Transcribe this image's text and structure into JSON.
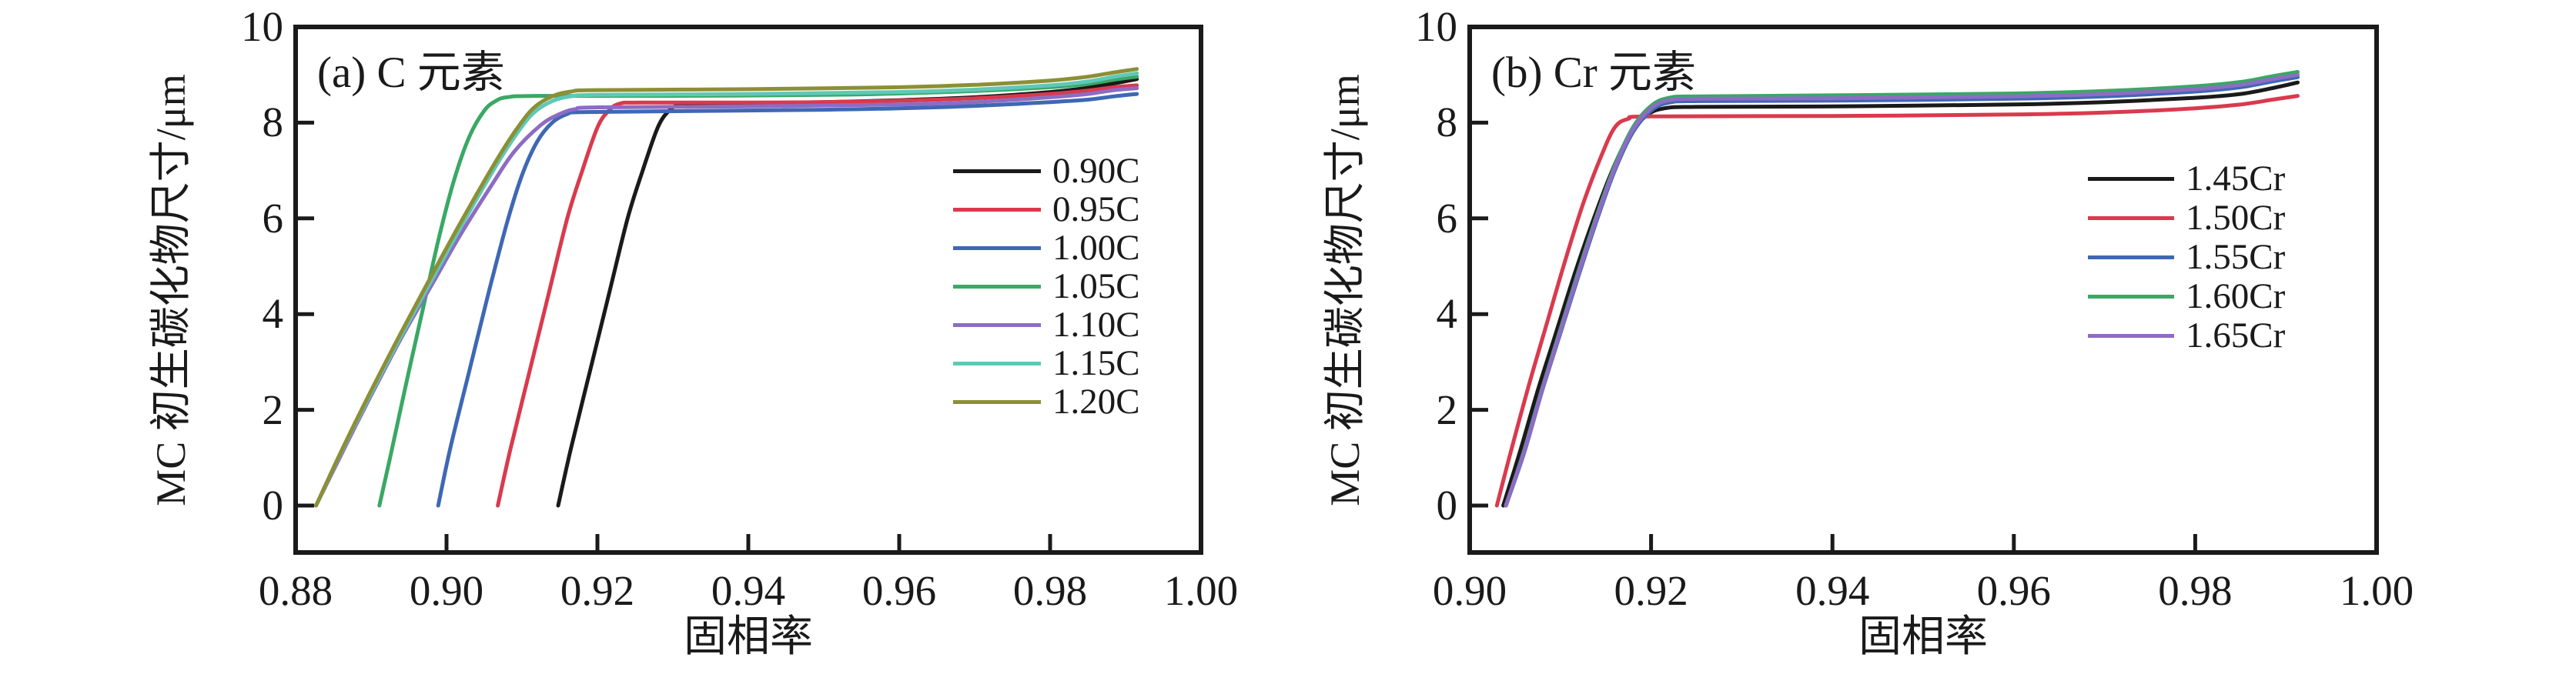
{
  "figure": {
    "background": "#ffffff",
    "frame_color": "#1a1a1a",
    "text_color": "#1a1a1a"
  },
  "chart_data": [
    {
      "id": "a",
      "type": "line",
      "panel_label": "(a) C 元素",
      "xlabel": "固相率",
      "ylabel": "MC 初生碳化物尺寸/μm",
      "xlim": [
        0.88,
        1.0
      ],
      "ylim": [
        0,
        10
      ],
      "xticks": [
        0.88,
        0.9,
        0.92,
        0.94,
        0.96,
        0.98,
        1.0
      ],
      "xtick_labels": [
        "0.88",
        "0.90",
        "0.92",
        "0.94",
        "0.96",
        "0.98",
        "1.00"
      ],
      "yticks": [
        0,
        2,
        4,
        6,
        8,
        10
      ],
      "ytick_labels": [
        "0",
        "2",
        "4",
        "6",
        "8",
        "10"
      ],
      "grid": false,
      "legend_position": "right-center",
      "series": [
        {
          "name": "0.90C",
          "color": "#1a1a1a",
          "points": [
            [
              0.9148,
              0
            ],
            [
              0.9165,
              1.2
            ],
            [
              0.919,
              2.8
            ],
            [
              0.9215,
              4.4
            ],
            [
              0.924,
              6.0
            ],
            [
              0.926,
              7.0
            ],
            [
              0.928,
              7.9
            ],
            [
              0.9295,
              8.25
            ],
            [
              0.931,
              8.38
            ],
            [
              0.934,
              8.4
            ],
            [
              0.94,
              8.41
            ],
            [
              0.95,
              8.43
            ],
            [
              0.96,
              8.47
            ],
            [
              0.97,
              8.53
            ],
            [
              0.98,
              8.64
            ],
            [
              0.985,
              8.73
            ],
            [
              0.9885,
              8.82
            ],
            [
              0.9915,
              8.91
            ]
          ]
        },
        {
          "name": "0.95C",
          "color": "#d93a4e",
          "points": [
            [
              0.9068,
              0
            ],
            [
              0.9085,
              1.2
            ],
            [
              0.911,
              2.8
            ],
            [
              0.9135,
              4.4
            ],
            [
              0.916,
              6.0
            ],
            [
              0.918,
              7.0
            ],
            [
              0.92,
              7.9
            ],
            [
              0.9215,
              8.25
            ],
            [
              0.923,
              8.4
            ],
            [
              0.926,
              8.42
            ],
            [
              0.94,
              8.42
            ],
            [
              0.95,
              8.43
            ],
            [
              0.96,
              8.46
            ],
            [
              0.97,
              8.51
            ],
            [
              0.98,
              8.6
            ],
            [
              0.985,
              8.67
            ],
            [
              0.9885,
              8.74
            ],
            [
              0.9915,
              8.78
            ]
          ]
        },
        {
          "name": "1.00C",
          "color": "#3e68b4",
          "points": [
            [
              0.8989,
              0
            ],
            [
              0.9005,
              1.2
            ],
            [
              0.903,
              2.8
            ],
            [
              0.9055,
              4.4
            ],
            [
              0.908,
              5.9
            ],
            [
              0.91,
              6.9
            ],
            [
              0.912,
              7.6
            ],
            [
              0.914,
              8.0
            ],
            [
              0.916,
              8.18
            ],
            [
              0.918,
              8.22
            ],
            [
              0.93,
              8.24
            ],
            [
              0.95,
              8.27
            ],
            [
              0.96,
              8.3
            ],
            [
              0.97,
              8.35
            ],
            [
              0.98,
              8.43
            ],
            [
              0.985,
              8.48
            ],
            [
              0.9885,
              8.55
            ],
            [
              0.9915,
              8.6
            ]
          ]
        },
        {
          "name": "1.05C",
          "color": "#3aa865",
          "points": [
            [
              0.8911,
              0
            ],
            [
              0.8928,
              1.2
            ],
            [
              0.895,
              2.8
            ],
            [
              0.897,
              4.2
            ],
            [
              0.899,
              5.6
            ],
            [
              0.901,
              6.8
            ],
            [
              0.903,
              7.7
            ],
            [
              0.905,
              8.25
            ],
            [
              0.9065,
              8.45
            ],
            [
              0.908,
              8.53
            ],
            [
              0.912,
              8.56
            ],
            [
              0.93,
              8.56
            ],
            [
              0.95,
              8.58
            ],
            [
              0.96,
              8.61
            ],
            [
              0.97,
              8.66
            ],
            [
              0.98,
              8.74
            ],
            [
              0.985,
              8.81
            ],
            [
              0.9885,
              8.9
            ],
            [
              0.9915,
              8.96
            ]
          ]
        },
        {
          "name": "1.10C",
          "color": "#8d6cc3",
          "points": [
            [
              0.8827,
              0
            ],
            [
              0.886,
              1.05
            ],
            [
              0.89,
              2.3
            ],
            [
              0.894,
              3.5
            ],
            [
              0.898,
              4.6
            ],
            [
              0.902,
              5.7
            ],
            [
              0.906,
              6.7
            ],
            [
              0.909,
              7.4
            ],
            [
              0.9125,
              7.95
            ],
            [
              0.915,
              8.18
            ],
            [
              0.917,
              8.28
            ],
            [
              0.92,
              8.32
            ],
            [
              0.94,
              8.34
            ],
            [
              0.96,
              8.38
            ],
            [
              0.97,
              8.43
            ],
            [
              0.98,
              8.53
            ],
            [
              0.985,
              8.6
            ],
            [
              0.9885,
              8.68
            ],
            [
              0.9915,
              8.72
            ]
          ]
        },
        {
          "name": "1.15C",
          "color": "#5fc8b7",
          "points": [
            [
              0.8827,
              0
            ],
            [
              0.886,
              1.1
            ],
            [
              0.89,
              2.35
            ],
            [
              0.894,
              3.55
            ],
            [
              0.898,
              4.7
            ],
            [
              0.902,
              5.85
            ],
            [
              0.906,
              6.95
            ],
            [
              0.909,
              7.7
            ],
            [
              0.9115,
              8.2
            ],
            [
              0.914,
              8.45
            ],
            [
              0.9165,
              8.55
            ],
            [
              0.92,
              8.58
            ],
            [
              0.94,
              8.6
            ],
            [
              0.96,
              8.64
            ],
            [
              0.97,
              8.69
            ],
            [
              0.98,
              8.78
            ],
            [
              0.985,
              8.86
            ],
            [
              0.9885,
              8.96
            ],
            [
              0.9915,
              9.03
            ]
          ]
        },
        {
          "name": "1.20C",
          "color": "#8c8f35",
          "points": [
            [
              0.8827,
              0
            ],
            [
              0.886,
              1.12
            ],
            [
              0.89,
              2.4
            ],
            [
              0.894,
              3.62
            ],
            [
              0.898,
              4.8
            ],
            [
              0.902,
              5.95
            ],
            [
              0.906,
              7.05
            ],
            [
              0.909,
              7.8
            ],
            [
              0.9115,
              8.3
            ],
            [
              0.914,
              8.55
            ],
            [
              0.9165,
              8.65
            ],
            [
              0.92,
              8.68
            ],
            [
              0.94,
              8.7
            ],
            [
              0.96,
              8.74
            ],
            [
              0.97,
              8.79
            ],
            [
              0.98,
              8.88
            ],
            [
              0.985,
              8.96
            ],
            [
              0.9885,
              9.05
            ],
            [
              0.9915,
              9.12
            ]
          ]
        }
      ]
    },
    {
      "id": "b",
      "type": "line",
      "panel_label": "(b) Cr 元素",
      "xlabel": "固相率",
      "ylabel": "MC 初生碳化物尺寸/μm",
      "xlim": [
        0.9,
        1.0
      ],
      "ylim": [
        0,
        10
      ],
      "xticks": [
        0.9,
        0.92,
        0.94,
        0.96,
        0.98,
        1.0
      ],
      "xtick_labels": [
        "0.90",
        "0.92",
        "0.94",
        "0.96",
        "0.98",
        "1.00"
      ],
      "yticks": [
        0,
        2,
        4,
        6,
        8,
        10
      ],
      "ytick_labels": [
        "0",
        "2",
        "4",
        "6",
        "8",
        "10"
      ],
      "grid": false,
      "legend_position": "right-center",
      "series": [
        {
          "name": "1.45Cr",
          "color": "#1a1a1a",
          "points": [
            [
              0.9037,
              0
            ],
            [
              0.9055,
              1.1
            ],
            [
              0.9075,
              2.4
            ],
            [
              0.9095,
              3.6
            ],
            [
              0.9115,
              4.8
            ],
            [
              0.9135,
              5.9
            ],
            [
              0.9155,
              6.9
            ],
            [
              0.9175,
              7.7
            ],
            [
              0.9195,
              8.15
            ],
            [
              0.9215,
              8.3
            ],
            [
              0.925,
              8.33
            ],
            [
              0.94,
              8.34
            ],
            [
              0.96,
              8.38
            ],
            [
              0.97,
              8.43
            ],
            [
              0.98,
              8.52
            ],
            [
              0.985,
              8.6
            ],
            [
              0.9885,
              8.72
            ],
            [
              0.9913,
              8.84
            ]
          ]
        },
        {
          "name": "1.50Cr",
          "color": "#d93a4e",
          "points": [
            [
              0.903,
              0
            ],
            [
              0.9045,
              1.1
            ],
            [
              0.9065,
              2.5
            ],
            [
              0.9085,
              3.8
            ],
            [
              0.9105,
              5.1
            ],
            [
              0.9125,
              6.3
            ],
            [
              0.9145,
              7.3
            ],
            [
              0.916,
              7.9
            ],
            [
              0.9175,
              8.08
            ],
            [
              0.92,
              8.13
            ],
            [
              0.94,
              8.14
            ],
            [
              0.96,
              8.17
            ],
            [
              0.97,
              8.21
            ],
            [
              0.98,
              8.3
            ],
            [
              0.985,
              8.38
            ],
            [
              0.9885,
              8.48
            ],
            [
              0.9913,
              8.56
            ]
          ]
        },
        {
          "name": "1.55Cr",
          "color": "#3e68b4",
          "points": [
            [
              0.904,
              0
            ],
            [
              0.906,
              1.1
            ],
            [
              0.908,
              2.4
            ],
            [
              0.91,
              3.6
            ],
            [
              0.912,
              4.8
            ],
            [
              0.914,
              5.95
            ],
            [
              0.916,
              7.0
            ],
            [
              0.918,
              7.8
            ],
            [
              0.92,
              8.25
            ],
            [
              0.922,
              8.42
            ],
            [
              0.9255,
              8.45
            ],
            [
              0.94,
              8.46
            ],
            [
              0.96,
              8.5
            ],
            [
              0.97,
              8.55
            ],
            [
              0.98,
              8.65
            ],
            [
              0.985,
              8.74
            ],
            [
              0.9885,
              8.86
            ],
            [
              0.9913,
              8.95
            ]
          ]
        },
        {
          "name": "1.60Cr",
          "color": "#3aa865",
          "points": [
            [
              0.904,
              0
            ],
            [
              0.906,
              1.15
            ],
            [
              0.908,
              2.45
            ],
            [
              0.91,
              3.68
            ],
            [
              0.912,
              4.9
            ],
            [
              0.914,
              6.05
            ],
            [
              0.916,
              7.1
            ],
            [
              0.918,
              7.9
            ],
            [
              0.92,
              8.35
            ],
            [
              0.922,
              8.52
            ],
            [
              0.9255,
              8.55
            ],
            [
              0.94,
              8.57
            ],
            [
              0.96,
              8.61
            ],
            [
              0.97,
              8.66
            ],
            [
              0.98,
              8.76
            ],
            [
              0.985,
              8.85
            ],
            [
              0.9885,
              8.97
            ],
            [
              0.9913,
              9.06
            ]
          ]
        },
        {
          "name": "1.65Cr",
          "color": "#8d6cc3",
          "points": [
            [
              0.904,
              0
            ],
            [
              0.906,
              1.12
            ],
            [
              0.908,
              2.42
            ],
            [
              0.91,
              3.64
            ],
            [
              0.912,
              4.85
            ],
            [
              0.914,
              6.0
            ],
            [
              0.916,
              7.05
            ],
            [
              0.918,
              7.85
            ],
            [
              0.92,
              8.3
            ],
            [
              0.922,
              8.47
            ],
            [
              0.9255,
              8.5
            ],
            [
              0.94,
              8.51
            ],
            [
              0.96,
              8.55
            ],
            [
              0.97,
              8.6
            ],
            [
              0.98,
              8.7
            ],
            [
              0.985,
              8.79
            ],
            [
              0.9885,
              8.91
            ],
            [
              0.9913,
              9.0
            ]
          ]
        }
      ]
    }
  ]
}
